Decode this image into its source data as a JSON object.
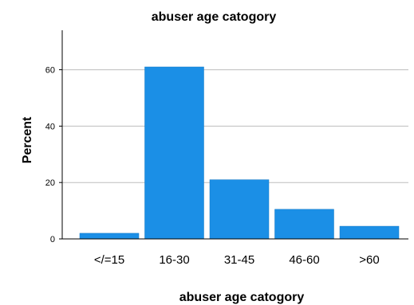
{
  "chart_data": {
    "type": "bar",
    "title": "abuser age catogory",
    "xlabel": "abuser age catogory",
    "ylabel": "Percent",
    "categories": [
      "</=15",
      "16-30",
      "31-45",
      "46-60",
      ">60"
    ],
    "values": [
      2,
      61,
      21,
      10.5,
      4.5
    ],
    "ylim": [
      0,
      74
    ],
    "yticks": [
      0,
      20,
      40,
      60
    ],
    "grid": true,
    "bar_color": "#1b8fe6"
  }
}
